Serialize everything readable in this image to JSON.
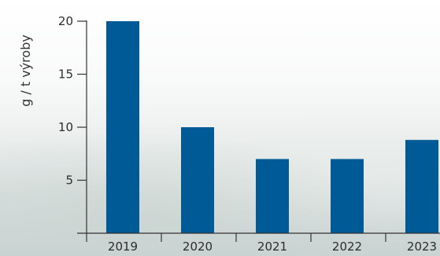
{
  "chart_data": {
    "type": "bar",
    "categories": [
      "2019",
      "2020",
      "2021",
      "2022",
      "2023"
    ],
    "values": [
      20,
      10,
      7,
      7,
      8.8
    ],
    "title": "",
    "xlabel": "",
    "ylabel": "g / t výroby",
    "ylim": [
      0,
      20
    ],
    "yticks": [
      5,
      10,
      15,
      20
    ],
    "grid": false,
    "bar_color": "#005a96",
    "axis_color": "#333333"
  }
}
